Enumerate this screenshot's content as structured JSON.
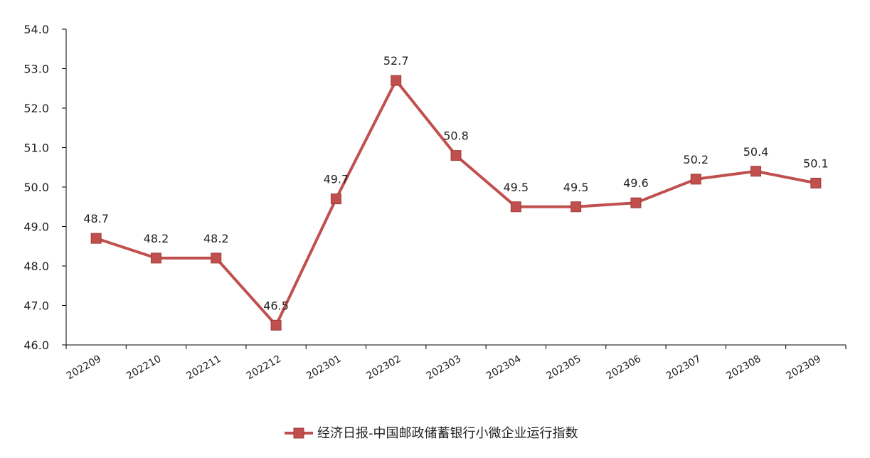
{
  "chart_data": {
    "type": "line",
    "title": "",
    "xlabel": "",
    "ylabel": "",
    "categories": [
      "202209",
      "202210",
      "202211",
      "202212",
      "202301",
      "202302",
      "202303",
      "202304",
      "202305",
      "202306",
      "202307",
      "202308",
      "202309"
    ],
    "series": [
      {
        "name": "经济日报-中国邮政储蓄银行小微企业运行指数",
        "values": [
          48.7,
          48.2,
          48.2,
          46.5,
          49.7,
          52.7,
          50.8,
          49.5,
          49.5,
          49.6,
          50.2,
          50.4,
          50.1
        ],
        "color": "#c0504d",
        "marker": "square"
      }
    ],
    "data_labels": [
      "48.7",
      "48.2",
      "48.2",
      "46.5",
      "49.7",
      "52.7",
      "50.8",
      "49.5",
      "49.5",
      "49.6",
      "50.2",
      "50.4",
      "50.1"
    ],
    "y_ticks": [
      "46.0",
      "47.0",
      "48.0",
      "49.0",
      "50.0",
      "51.0",
      "52.0",
      "53.0",
      "54.0"
    ],
    "ylim": [
      46,
      54
    ],
    "grid": false,
    "legend_position": "bottom",
    "axis_color": "#000000"
  }
}
